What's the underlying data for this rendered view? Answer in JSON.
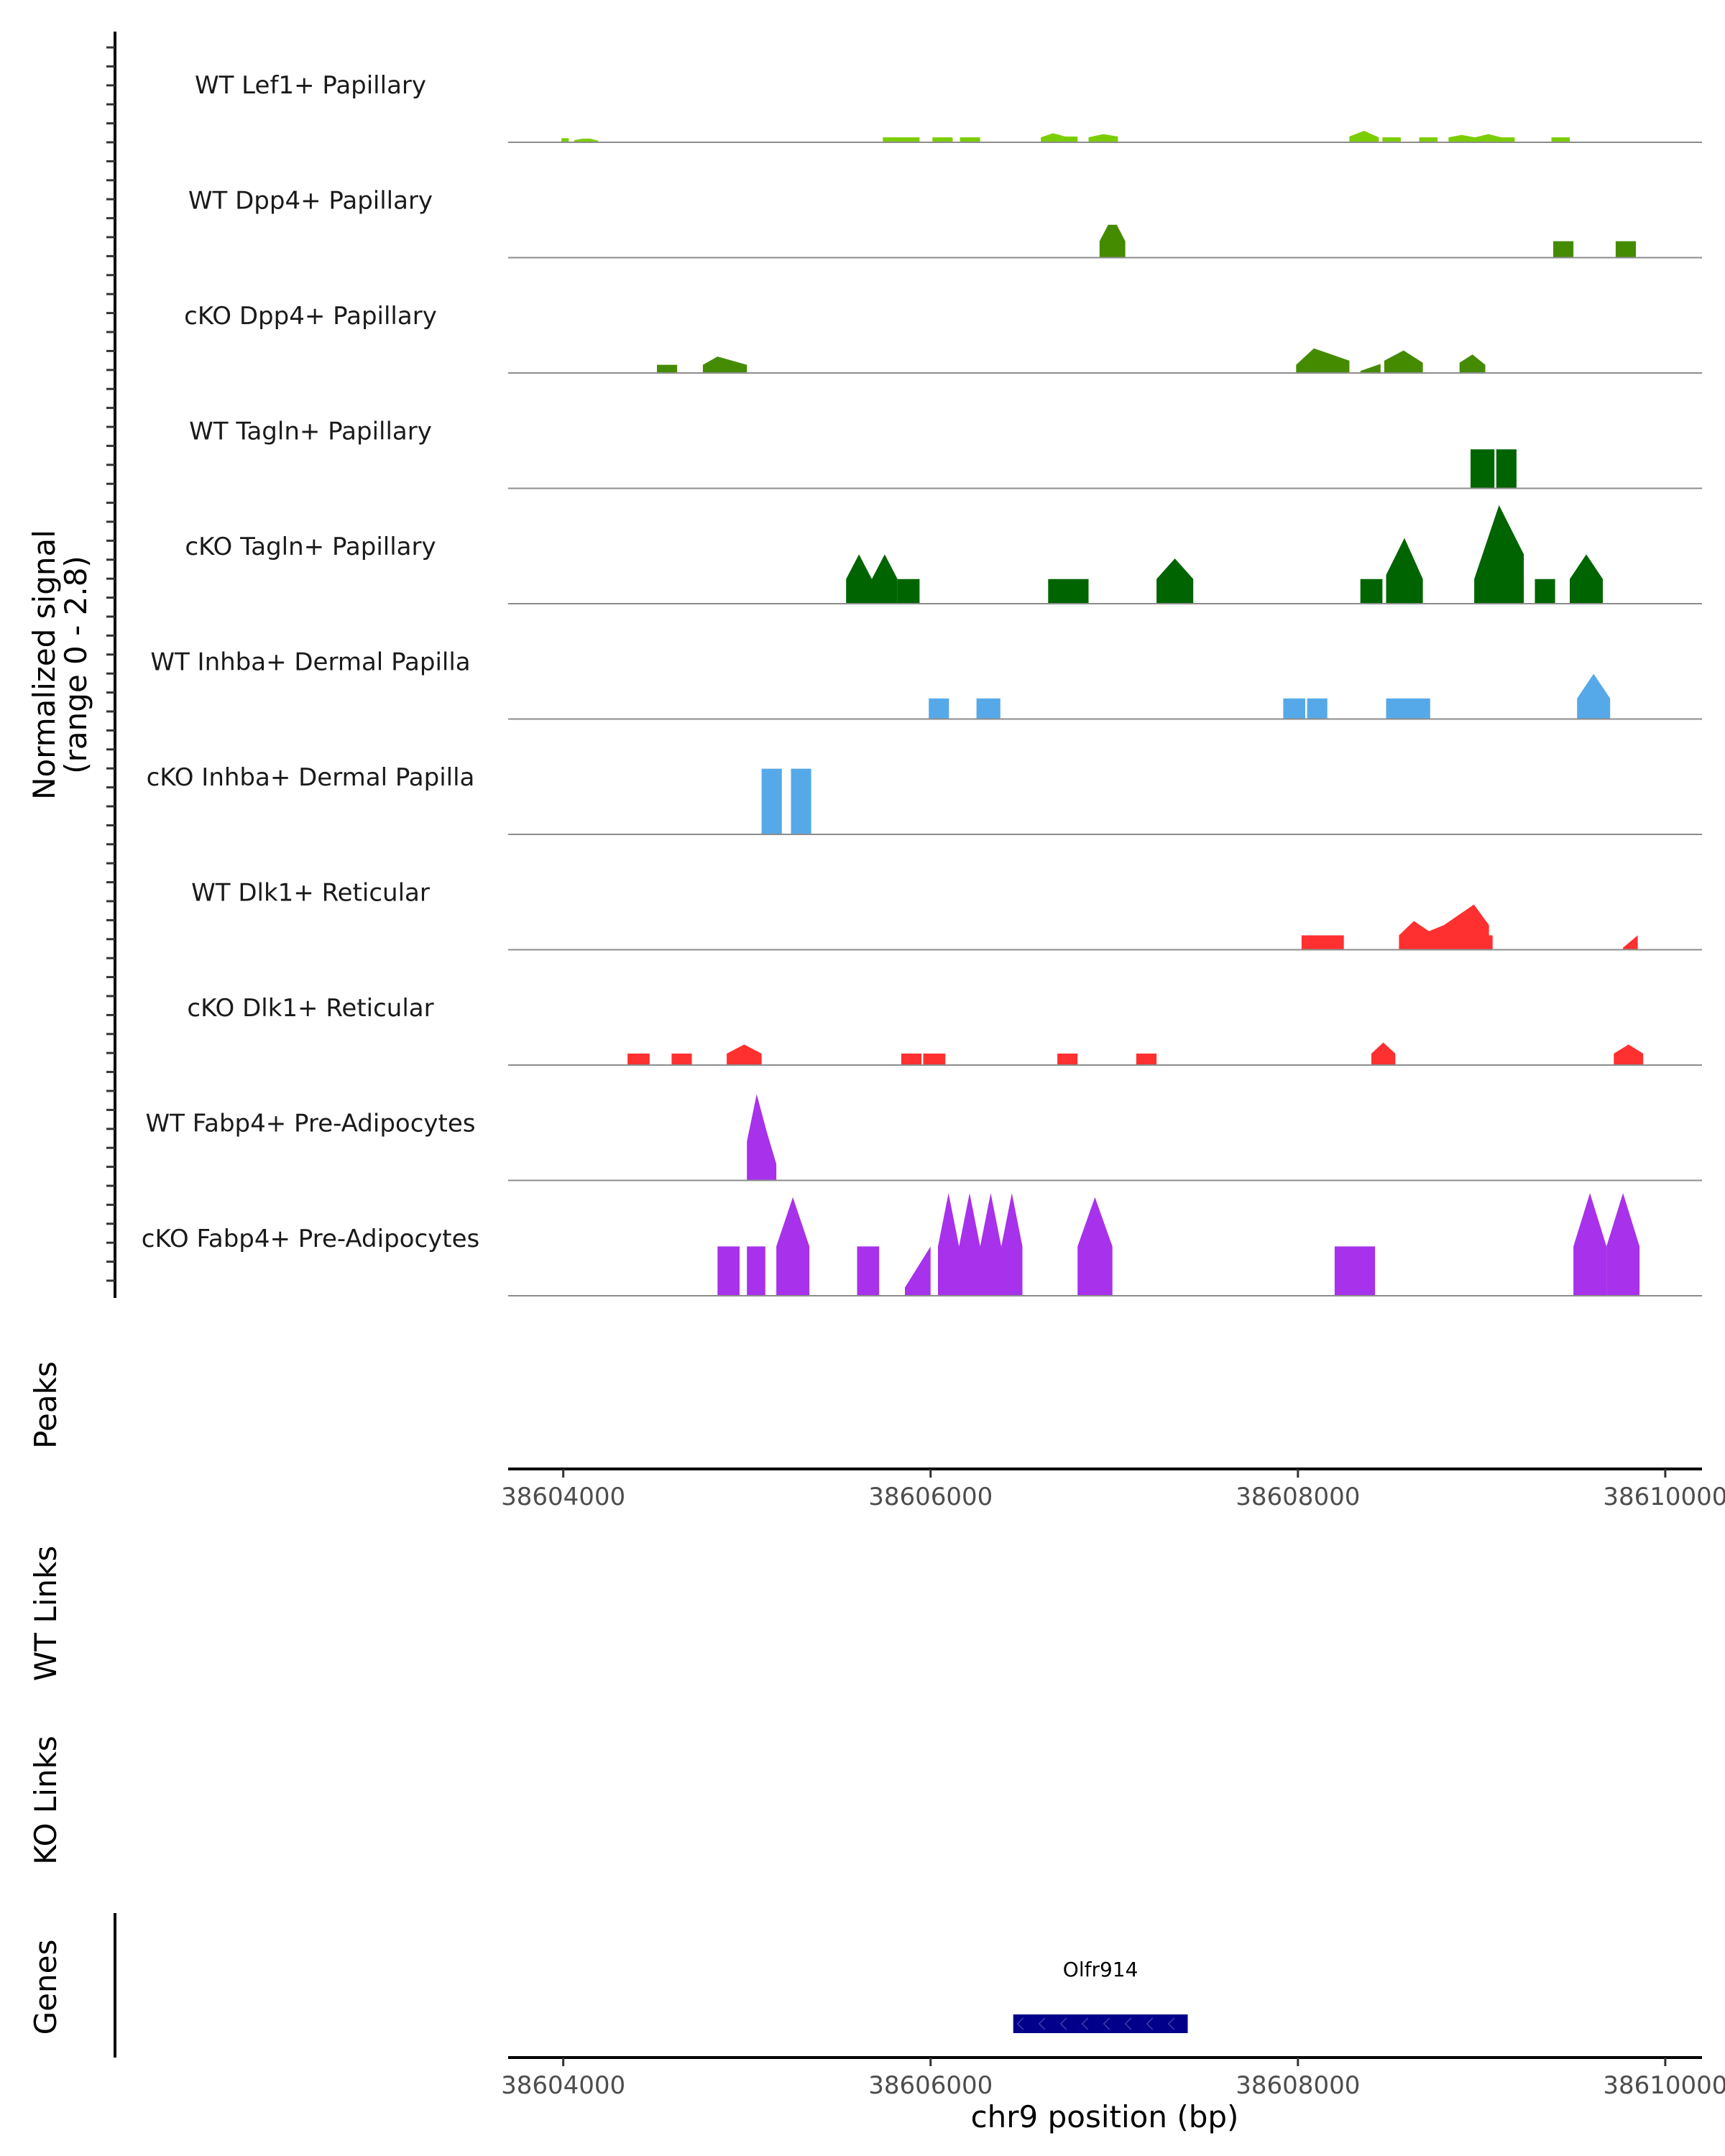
{
  "chart_data": {
    "type": "area",
    "subtype": "genome coverage plot",
    "xlabel": "chr9 position (bp)",
    "xlim": [
      38603700,
      38610200
    ],
    "xticks": [
      38604000,
      38606000,
      38608000,
      38610000
    ],
    "xtick_labels": [
      "38604000",
      "38606000",
      "38608000",
      "38610000"
    ],
    "ylabel_lines": [
      "Normalized signal",
      "(range 0 - 2.8)"
    ],
    "ylim": [
      0,
      2.8
    ],
    "panel_labels": {
      "peaks": "Peaks",
      "wt_links": "WT Links",
      "ko_links": "KO Links",
      "genes": "Genes"
    },
    "gene": {
      "name": "Olfr914",
      "start": 38606450,
      "end": 38607400,
      "strand": "-",
      "color": "#00008B"
    },
    "series": [
      {
        "name": "WT Lef1+ Papillary",
        "color": "#7CCD00",
        "peaks": [
          [
            38603990,
            38604030,
            [
              0.1
            ]
          ],
          [
            38604060,
            38604190,
            [
              0.05,
              0.09,
              0.09,
              0.04
            ]
          ],
          [
            38605740,
            38605940,
            [
              0.12
            ]
          ],
          [
            38606010,
            38606120,
            [
              0.12
            ]
          ],
          [
            38606160,
            38606270,
            [
              0.12
            ]
          ],
          [
            38606600,
            38606800,
            [
              0.12,
              0.22,
              0.14,
              0.14
            ]
          ],
          [
            38606860,
            38607020,
            [
              0.12,
              0.2,
              0.14
            ]
          ],
          [
            38608280,
            38608440,
            [
              0.14,
              0.28,
              0.12
            ]
          ],
          [
            38608460,
            38608560,
            [
              0.12
            ]
          ],
          [
            38608660,
            38608760,
            [
              0.12
            ]
          ],
          [
            38608820,
            38608970,
            [
              0.12
            ]
          ],
          [
            38608820,
            38609180,
            [
              0.12,
              0.18,
              0.12,
              0.2,
              0.12,
              0.12
            ]
          ],
          [
            38609380,
            38609480,
            [
              0.12
            ]
          ]
        ]
      },
      {
        "name": "WT Dpp4+ Papillary",
        "color": "#458B00",
        "peaks": [
          [
            38606920,
            38607060,
            [
              0.4,
              0.8,
              0.8,
              0.4
            ]
          ],
          [
            38609390,
            38609500,
            [
              0.4
            ]
          ],
          [
            38609730,
            38609840,
            [
              0.4
            ]
          ]
        ]
      },
      {
        "name": "cKO Dpp4+ Papillary",
        "color": "#458B00",
        "peaks": [
          [
            38604510,
            38604620,
            [
              0.2
            ]
          ],
          [
            38604760,
            38605000,
            [
              0.2,
              0.4,
              0.3,
              0.2
            ]
          ],
          [
            38607990,
            38608280,
            [
              0.2,
              0.6,
              0.45,
              0.3
            ]
          ],
          [
            38608340,
            38608450,
            [
              0.05,
              0.22
            ]
          ],
          [
            38608470,
            38608680,
            [
              0.3,
              0.55,
              0.25
            ]
          ],
          [
            38608880,
            38609020,
            [
              0.25,
              0.45,
              0.2
            ]
          ]
        ]
      },
      {
        "name": "WT Tagln+ Papillary",
        "color": "#006400",
        "peaks": [
          [
            38608940,
            38609070,
            [
              0.95
            ]
          ],
          [
            38609080,
            38609190,
            [
              0.95
            ]
          ]
        ]
      },
      {
        "name": "cKO Tagln+ Papillary",
        "color": "#006400",
        "peaks": [
          [
            38605540,
            38605820,
            [
              0.6,
              1.2,
              0.6,
              1.2,
              0.6
            ]
          ],
          [
            38605820,
            38605940,
            [
              0.6
            ]
          ],
          [
            38606640,
            38606860,
            [
              0.6
            ]
          ],
          [
            38607230,
            38607430,
            [
              0.6,
              1.1,
              0.6
            ]
          ],
          [
            38608340,
            38608460,
            [
              0.6
            ]
          ],
          [
            38608480,
            38608680,
            [
              0.7,
              1.6,
              0.6
            ]
          ],
          [
            38608960,
            38609230,
            [
              0.6,
              2.4,
              1.2
            ]
          ],
          [
            38609290,
            38609400,
            [
              0.6
            ]
          ],
          [
            38609480,
            38609660,
            [
              0.6,
              1.2,
              0.6
            ]
          ]
        ]
      },
      {
        "name": "WT Inhba+ Dermal Papilla",
        "color": "#56A9E8",
        "peaks": [
          [
            38605990,
            38606100,
            [
              0.5
            ]
          ],
          [
            38606250,
            38606380,
            [
              0.5
            ]
          ],
          [
            38607920,
            38608040,
            [
              0.5
            ]
          ],
          [
            38608050,
            38608160,
            [
              0.5
            ]
          ],
          [
            38608480,
            38608720,
            [
              0.5
            ]
          ],
          [
            38609520,
            38609700,
            [
              0.5,
              1.1,
              0.5
            ]
          ]
        ]
      },
      {
        "name": "cKO Inhba+ Dermal Papilla",
        "color": "#56A9E8",
        "peaks": [
          [
            38605080,
            38605190,
            [
              1.6
            ]
          ],
          [
            38605240,
            38605350,
            [
              1.6
            ]
          ]
        ]
      },
      {
        "name": "WT Dlk1+ Reticular",
        "color": "#FF3030",
        "peaks": [
          [
            38608020,
            38608250,
            [
              0.35
            ]
          ],
          [
            38608550,
            38609040,
            [
              0.35,
              0.7,
              0.45,
              0.6,
              0.85,
              1.1,
              0.6
            ]
          ],
          [
            38608920,
            38609060,
            [
              0.35
            ]
          ],
          [
            38609770,
            38609850,
            [
              0.05,
              0.35
            ]
          ]
        ]
      },
      {
        "name": "cKO Dlk1+ Reticular",
        "color": "#FF3030",
        "peaks": [
          [
            38604350,
            38604470,
            [
              0.28
            ]
          ],
          [
            38604590,
            38604700,
            [
              0.28
            ]
          ],
          [
            38604890,
            38605080,
            [
              0.28,
              0.5,
              0.28
            ]
          ],
          [
            38605840,
            38605950,
            [
              0.28
            ]
          ],
          [
            38605960,
            38606080,
            [
              0.28
            ]
          ],
          [
            38606690,
            38606800,
            [
              0.28
            ]
          ],
          [
            38607120,
            38607230,
            [
              0.28
            ]
          ],
          [
            38608400,
            38608530,
            [
              0.28,
              0.55,
              0.28
            ]
          ],
          [
            38609720,
            38609880,
            [
              0.28,
              0.5,
              0.28
            ]
          ]
        ]
      },
      {
        "name": "WT Fabp4+ Pre-Adipocytes",
        "color": "#A831EB",
        "peaks": [
          [
            38605000,
            38605160,
            [
              0.95,
              2.1,
              1.2,
              0.4
            ]
          ]
        ]
      },
      {
        "name": "cKO Fabp4+ Pre-Adipocytes",
        "color": "#A831EB",
        "peaks": [
          [
            38604840,
            38604960,
            [
              1.2
            ]
          ],
          [
            38605000,
            38605100,
            [
              1.2
            ]
          ],
          [
            38605160,
            38605340,
            [
              1.2,
              2.4,
              1.2
            ]
          ],
          [
            38605600,
            38605720,
            [
              1.2
            ]
          ],
          [
            38605860,
            38606000,
            [
              0.2,
              1.2
            ]
          ],
          [
            38606040,
            38606500,
            [
              1.2,
              2.5,
              1.2,
              2.5,
              1.2,
              2.5,
              1.2,
              2.5,
              1.2
            ]
          ],
          [
            38606800,
            38606990,
            [
              1.2,
              2.4,
              1.2
            ]
          ],
          [
            38608200,
            38608420,
            [
              1.2
            ]
          ],
          [
            38609500,
            38609680,
            [
              1.2,
              2.5,
              1.2
            ]
          ],
          [
            38609680,
            38609860,
            [
              1.2,
              2.5,
              1.2
            ]
          ]
        ]
      }
    ]
  }
}
